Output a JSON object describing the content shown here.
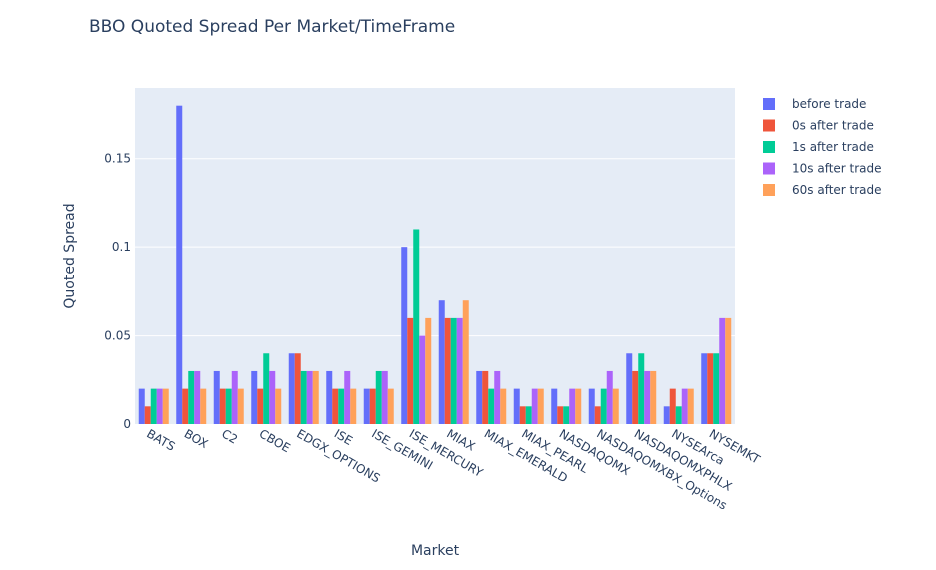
{
  "chart_data": {
    "type": "bar",
    "title": "BBO Quoted Spread Per Market/TimeFrame",
    "xlabel": "Market",
    "ylabel": "Quoted Spread",
    "ylim": [
      0,
      0.19
    ],
    "yticks": [
      0,
      0.05,
      0.1,
      0.15
    ],
    "ytick_labels": [
      "0",
      "0.05",
      "0.1",
      "0.15"
    ],
    "grid": true,
    "legend_position": "top-right",
    "categories": [
      "BATS",
      "BOX",
      "C2",
      "CBOE",
      "EDGX_OPTIONS",
      "ISE",
      "ISE_GEMINI",
      "ISE_MERCURY",
      "MIAX",
      "MIAX_EMERALD",
      "MIAX_PEARL",
      "NASDAQOMX",
      "NASDAQOMXBX_Options",
      "NASDAQOMXPHLX",
      "NYSEArca",
      "NYSEMKT"
    ],
    "series": [
      {
        "name": "before trade",
        "color": "#636efa",
        "values": [
          0.02,
          0.18,
          0.03,
          0.03,
          0.04,
          0.03,
          0.02,
          0.1,
          0.07,
          0.03,
          0.02,
          0.02,
          0.02,
          0.04,
          0.01,
          0.04
        ]
      },
      {
        "name": "0s after trade",
        "color": "#ef553b",
        "values": [
          0.01,
          0.02,
          0.02,
          0.02,
          0.04,
          0.02,
          0.02,
          0.06,
          0.06,
          0.03,
          0.01,
          0.01,
          0.01,
          0.03,
          0.02,
          0.04
        ]
      },
      {
        "name": "1s after trade",
        "color": "#00cc96",
        "values": [
          0.02,
          0.03,
          0.02,
          0.04,
          0.03,
          0.02,
          0.03,
          0.11,
          0.06,
          0.02,
          0.01,
          0.01,
          0.02,
          0.04,
          0.01,
          0.04
        ]
      },
      {
        "name": "10s after trade",
        "color": "#ab63fa",
        "values": [
          0.02,
          0.03,
          0.03,
          0.03,
          0.03,
          0.03,
          0.03,
          0.05,
          0.06,
          0.03,
          0.02,
          0.02,
          0.03,
          0.03,
          0.02,
          0.06
        ]
      },
      {
        "name": "60s after trade",
        "color": "#ffa15a",
        "values": [
          0.02,
          0.02,
          0.02,
          0.02,
          0.03,
          0.02,
          0.02,
          0.06,
          0.07,
          0.02,
          0.02,
          0.02,
          0.02,
          0.03,
          0.02,
          0.06
        ]
      }
    ]
  }
}
